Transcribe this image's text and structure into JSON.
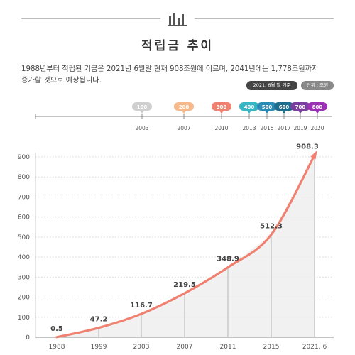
{
  "header": {
    "title": "적립금 추이",
    "description_line1": "1988년부터 적립된 기금은 2021년 6월말 현재 908조원에 이르며, 2041년에는 1,778조원까지",
    "description_line2": "증가할 것으로 예상됩니다.",
    "badge_basis": "2021. 6월 말 기준",
    "badge_unit": "단위 : 조원"
  },
  "timeline": {
    "milestones": [
      {
        "label": "100",
        "year": "2003",
        "color": "#cfcfcf"
      },
      {
        "label": "200",
        "year": "2007",
        "color": "#f6b98c"
      },
      {
        "label": "300",
        "year": "2010",
        "color": "#f08070"
      },
      {
        "label": "400",
        "year": "2013",
        "color": "#35b6c4"
      },
      {
        "label": "500",
        "year": "2015",
        "color": "#2a8bb5"
      },
      {
        "label": "600",
        "year": "2017",
        "color": "#1d6d8f"
      },
      {
        "label": "700",
        "year": "2019",
        "color": "#7b3f9e"
      },
      {
        "label": "800",
        "year": "2020",
        "color": "#9b2fb5"
      }
    ]
  },
  "chart_data": {
    "type": "line",
    "title": "적립금 추이",
    "categories": [
      "1988",
      "1999",
      "2003",
      "2007",
      "2011",
      "2015",
      "2021. 6"
    ],
    "values": [
      0.5,
      47.2,
      116.7,
      219.5,
      348.9,
      512.3,
      908.3
    ],
    "data_labels": [
      "0.5",
      "47.2",
      "116.7",
      "219.5",
      "348.9",
      "512.3",
      "908.3"
    ],
    "yticks": [
      0,
      100,
      200,
      300,
      400,
      500,
      600,
      700,
      800,
      900
    ],
    "ylim": [
      0,
      900
    ],
    "grid": true,
    "line_color": "#f08070"
  }
}
